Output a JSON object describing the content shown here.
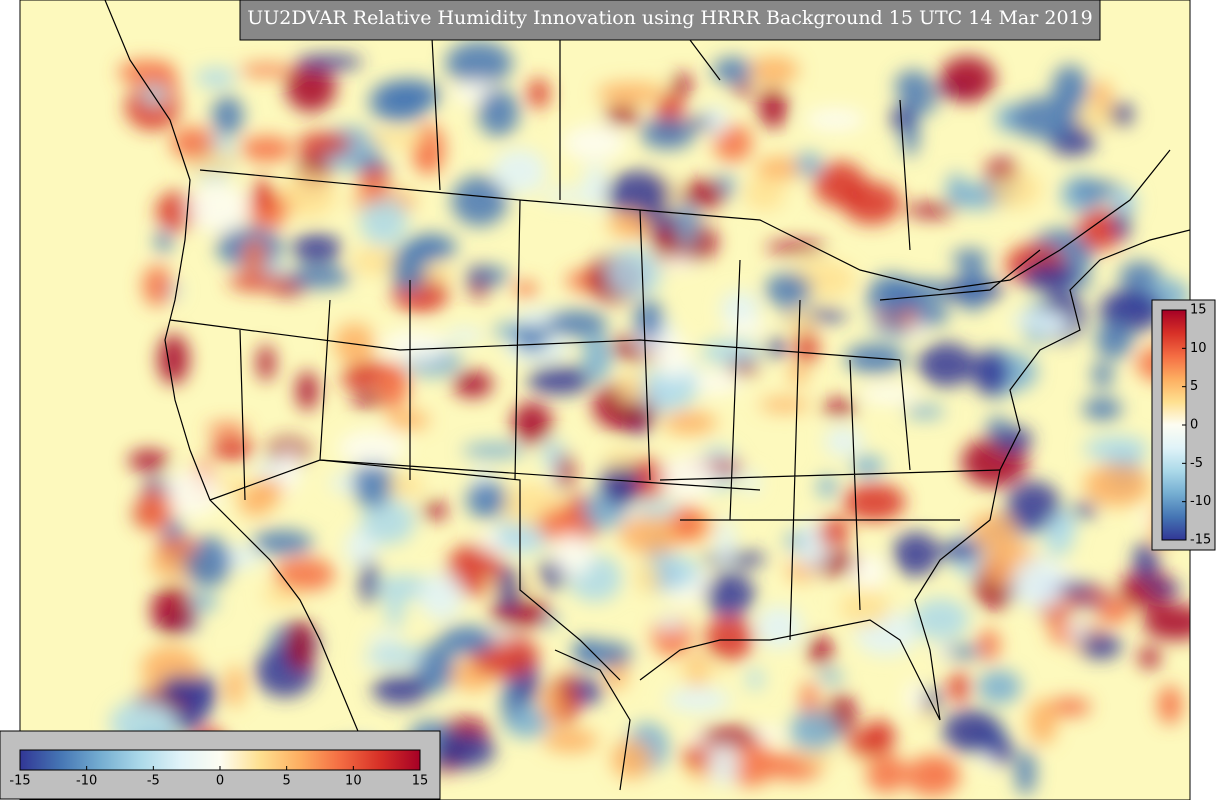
{
  "title": "UU2DVAR Relative Humidity Innovation using HRRR Background 15 UTC 14 Mar 2019",
  "colors": [
    "#313695",
    "#4575b4",
    "#74add1",
    "#abd9e9",
    "#e0f3f8",
    "#fdfdf2",
    "#fee090",
    "#fdae61",
    "#f46d43",
    "#d73027",
    "#a50026"
  ],
  "colorbars": [
    {
      "orientation": "horizontal",
      "range": [
        -15,
        15
      ],
      "ticks": [
        -15,
        -10,
        -5,
        0,
        5,
        10,
        15
      ]
    },
    {
      "orientation": "vertical",
      "range": [
        -15,
        15
      ],
      "ticks": [
        -15,
        -10,
        -5,
        0,
        5,
        10,
        15
      ]
    }
  ]
}
